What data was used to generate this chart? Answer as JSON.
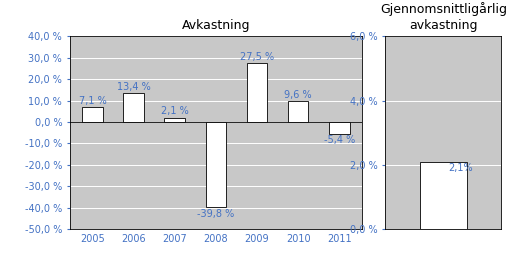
{
  "bar_years": [
    "2005",
    "2006",
    "2007",
    "2008",
    "2009",
    "2010",
    "2011"
  ],
  "bar_values": [
    7.1,
    13.4,
    2.1,
    -39.8,
    27.5,
    9.6,
    -5.4
  ],
  "bar_labels": [
    "7,1 %",
    "13,4 %",
    "2,1 %",
    "-39,8 %",
    "27,5 %",
    "9,6 %",
    "-5,4 %"
  ],
  "bar_color": "#ffffff",
  "bar_edgecolor": "#000000",
  "plot_bg_color": "#c8c8c8",
  "fig_bg_color": "#ffffff",
  "title1": "Avkastning",
  "title2": "Gjennomsnittligårlig\navkastning",
  "ylim1": [
    -50,
    40
  ],
  "yticks1": [
    -50,
    -40,
    -30,
    -20,
    -10,
    0,
    10,
    20,
    30,
    40
  ],
  "ylim2": [
    0,
    6
  ],
  "yticks2": [
    0,
    2,
    4,
    6
  ],
  "avg_value": 2.1,
  "avg_label": "2,1%",
  "avg_bar_color": "#ffffff",
  "avg_bar_edgecolor": "#000000",
  "label_color": "#4472c4",
  "gridcolor": "#ffffff",
  "title_fontsize": 9,
  "tick_fontsize": 7,
  "bar_label_fontsize": 7
}
